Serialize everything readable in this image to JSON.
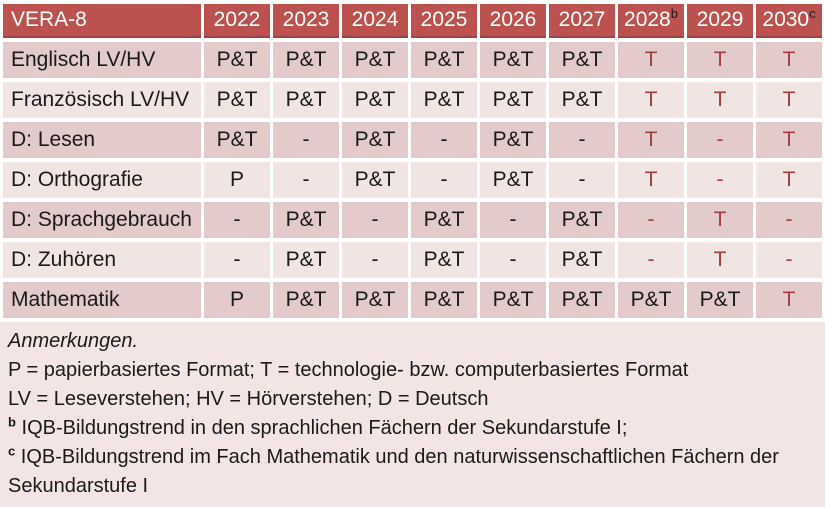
{
  "table": {
    "title": "VERA-8",
    "years": [
      {
        "label": "2022",
        "sup": ""
      },
      {
        "label": "2023",
        "sup": ""
      },
      {
        "label": "2024",
        "sup": ""
      },
      {
        "label": "2025",
        "sup": ""
      },
      {
        "label": "2026",
        "sup": ""
      },
      {
        "label": "2027",
        "sup": ""
      },
      {
        "label": "2028",
        "sup": "b"
      },
      {
        "label": "2029",
        "sup": ""
      },
      {
        "label": "2030",
        "sup": "c"
      }
    ],
    "rows": [
      {
        "label": "Englisch LV/HV",
        "values": [
          "P&T",
          "P&T",
          "P&T",
          "P&T",
          "P&T",
          "P&T",
          "T",
          "T",
          "T"
        ],
        "red": [
          false,
          false,
          false,
          false,
          false,
          false,
          true,
          true,
          true
        ]
      },
      {
        "label": "Französisch LV/HV",
        "values": [
          "P&T",
          "P&T",
          "P&T",
          "P&T",
          "P&T",
          "P&T",
          "T",
          "T",
          "T"
        ],
        "red": [
          false,
          false,
          false,
          false,
          false,
          false,
          true,
          true,
          true
        ]
      },
      {
        "label": "D: Lesen",
        "values": [
          "P&T",
          "-",
          "P&T",
          "-",
          "P&T",
          "-",
          "T",
          "-",
          "T"
        ],
        "red": [
          false,
          false,
          false,
          false,
          false,
          false,
          true,
          true,
          true
        ]
      },
      {
        "label": "D: Orthografie",
        "values": [
          "P",
          "-",
          "P&T",
          "-",
          "P&T",
          "-",
          "T",
          "-",
          "T"
        ],
        "red": [
          false,
          false,
          false,
          false,
          false,
          false,
          true,
          true,
          true
        ]
      },
      {
        "label": "D: Sprachgebrauch",
        "values": [
          "-",
          "P&T",
          "-",
          "P&T",
          "-",
          "P&T",
          "-",
          "T",
          "-"
        ],
        "red": [
          false,
          false,
          false,
          false,
          false,
          false,
          true,
          true,
          true
        ]
      },
      {
        "label": "D: Zuhören",
        "values": [
          "-",
          "P&T",
          "-",
          "P&T",
          "-",
          "P&T",
          "-",
          "T",
          "-"
        ],
        "red": [
          false,
          false,
          false,
          false,
          false,
          false,
          true,
          true,
          true
        ]
      },
      {
        "label": "Mathematik",
        "values": [
          "P",
          "P&T",
          "P&T",
          "P&T",
          "P&T",
          "P&T",
          "P&T",
          "P&T",
          "T"
        ],
        "red": [
          false,
          false,
          false,
          false,
          false,
          false,
          false,
          false,
          true
        ]
      }
    ]
  },
  "notes": {
    "heading": "Anmerkungen.",
    "line_formats": "P = papierbasiertes Format; T = technologie- bzw. computerbasiertes Format",
    "line_abbreviations": "LV = Leseverstehen; HV = Hörverstehen; D = Deutsch",
    "footnote_b": {
      "sup": "b",
      "text": "IQB-Bildungstrend in den sprachlichen Fächern der Sekundarstufe I;"
    },
    "footnote_c": {
      "sup": "c",
      "text": "IQB-Bildungstrend im Fach Mathematik und den naturwissenschaftlichen Fächern der Sekundarstufe I"
    }
  },
  "colors": {
    "header_bg": "#bb524f",
    "header_text": "#ffffff",
    "row_odd_bg": "#e2cbca",
    "row_even_bg": "#f1e5e4",
    "notes_bg": "#f2e5e3",
    "accent_red_text": "#a03f3e",
    "body_text": "#1a1a1a"
  }
}
